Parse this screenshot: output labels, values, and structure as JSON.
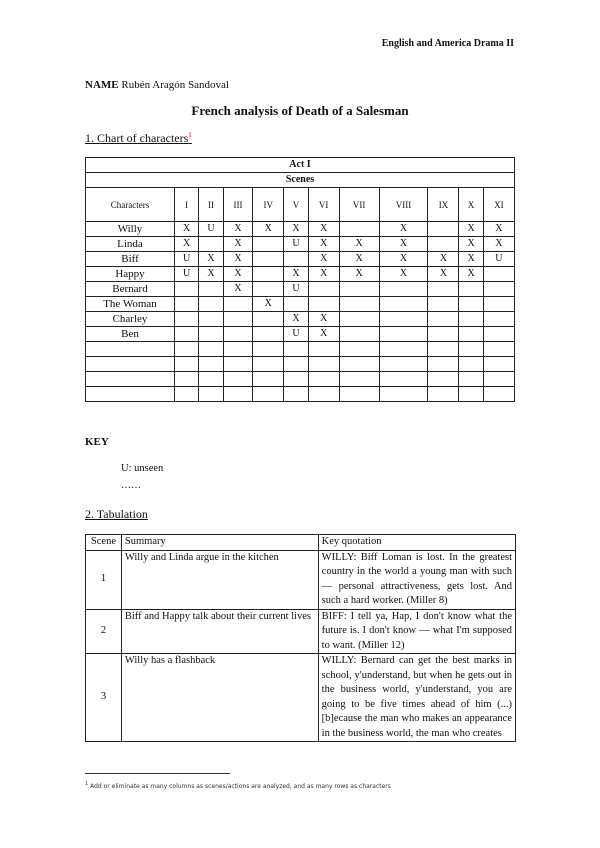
{
  "header": {
    "course": "English and America Drama II"
  },
  "name": {
    "label": "NAME",
    "value": "Rubén Aragón Sandoval"
  },
  "title": "French analysis of Death of a Salesman",
  "section1": {
    "heading": "1. Chart of characters",
    "footnote_mark": "1"
  },
  "chart": {
    "act": "Act I",
    "scenes_label": "Scenes",
    "characters_label": "Characters",
    "scenes": [
      "I",
      "II",
      "III",
      "IV",
      "V",
      "VI",
      "VII",
      "VIII",
      "IX",
      "X",
      "XI"
    ],
    "rows": [
      {
        "name": "Willy",
        "marks": [
          "X",
          "U",
          "X",
          "X",
          "X",
          "X",
          "",
          "X",
          "",
          "X",
          "X"
        ]
      },
      {
        "name": "Linda",
        "marks": [
          "X",
          "",
          "X",
          "",
          "U",
          "X",
          "X",
          "X",
          "",
          "X",
          "X"
        ]
      },
      {
        "name": "Biff",
        "marks": [
          "U",
          "X",
          "X",
          "",
          "",
          "X",
          "X",
          "X",
          "X",
          "X",
          "U"
        ]
      },
      {
        "name": "Happy",
        "marks": [
          "U",
          "X",
          "X",
          "",
          "X",
          "X",
          "X",
          "X",
          "X",
          "X",
          ""
        ]
      },
      {
        "name": "Bernard",
        "marks": [
          "",
          "",
          "X",
          "",
          "U",
          "",
          "",
          "",
          "",
          "",
          ""
        ]
      },
      {
        "name": "The Woman",
        "marks": [
          "",
          "",
          "",
          "X",
          "",
          "",
          "",
          "",
          "",
          "",
          ""
        ]
      },
      {
        "name": "Charley",
        "marks": [
          "",
          "",
          "",
          "",
          "X",
          "X",
          "",
          "",
          "",
          "",
          ""
        ]
      },
      {
        "name": "Ben",
        "marks": [
          "",
          "",
          "",
          "",
          "U",
          "X",
          "",
          "",
          "",
          "",
          ""
        ]
      },
      {
        "name": "",
        "marks": [
          "",
          "",
          "",
          "",
          "",
          "",
          "",
          "",
          "",
          "",
          ""
        ]
      },
      {
        "name": "",
        "marks": [
          "",
          "",
          "",
          "",
          "",
          "",
          "",
          "",
          "",
          "",
          ""
        ]
      },
      {
        "name": "",
        "marks": [
          "",
          "",
          "",
          "",
          "",
          "",
          "",
          "",
          "",
          "",
          ""
        ]
      },
      {
        "name": "",
        "marks": [
          "",
          "",
          "",
          "",
          "",
          "",
          "",
          "",
          "",
          "",
          ""
        ]
      }
    ]
  },
  "key": {
    "label": "KEY",
    "items": [
      "U: unseen",
      "……"
    ]
  },
  "section2": {
    "heading": "2. Tabulation"
  },
  "tabulation": {
    "headers": [
      "Scene",
      "Summary",
      "Key quotation"
    ],
    "rows": [
      {
        "scene": "1",
        "summary": "Willy and Linda argue in the kitchen",
        "quote": "WILLY: Biff Loman is lost. In the greatest country in the world a young man with such — personal attractiveness, gets lost. And such a hard worker. (Miller 8)"
      },
      {
        "scene": "2",
        "summary": "Biff and Happy talk about their current lives",
        "quote": "BIFF: I tell ya, Hap, I don't know what the future is. I don't know — what I'm supposed to want. (Miller 12)"
      },
      {
        "scene": "3",
        "summary": "Willy has a flashback",
        "quote": "WILLY: Bernard can get the best marks in school, y'understand, but when he gets out in the business world, y'understand, you are going to be five times ahead of him (...) [b]ecause the man who makes an appearance in the business world, the man who creates"
      }
    ]
  },
  "footnote": {
    "mark": "1",
    "text": "Add or eliminate as many columns as scenes/actions are analyzed, and as many rows as characters"
  }
}
